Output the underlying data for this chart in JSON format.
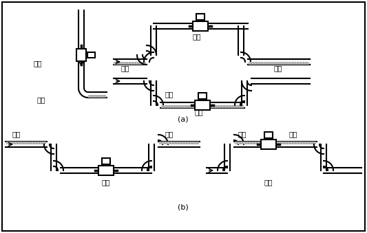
{
  "background_color": "#ffffff",
  "line_color": "#000000",
  "label_a": "(a)",
  "label_b": "(b)",
  "correct_label": "正确",
  "wrong_label": "错误",
  "liquid_label": "液体",
  "bubble_label": "气泡",
  "font_size": 7.5
}
